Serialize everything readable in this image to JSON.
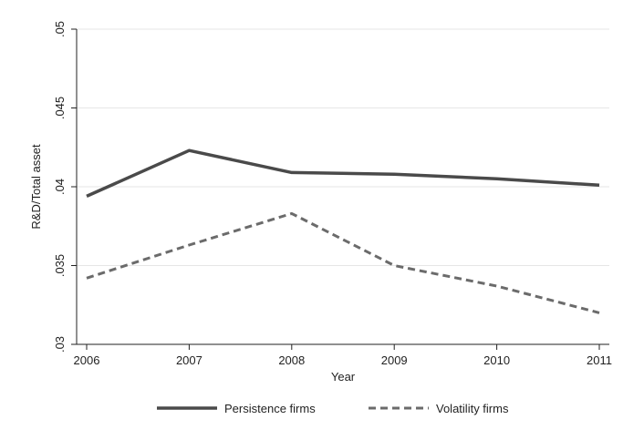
{
  "chart_data": {
    "type": "line",
    "title": "",
    "xlabel": "Year",
    "ylabel": "R&D/Total asset",
    "x": [
      2006,
      2007,
      2008,
      2009,
      2010,
      2011
    ],
    "x_tick_labels": [
      "2006",
      "2007",
      "2008",
      "2009",
      "2010",
      "2011"
    ],
    "xlim": [
      2006,
      2011
    ],
    "ylim": [
      0.03,
      0.05
    ],
    "y_ticks": [
      0.03,
      0.035,
      0.04,
      0.045,
      0.05
    ],
    "y_tick_labels": [
      ".03",
      ".035",
      ".04",
      ".045",
      ".05"
    ],
    "grid": "horizontal",
    "legend_position": "bottom",
    "series": [
      {
        "name": "Persistence firms",
        "color": "#4a4a4a",
        "style": "solid",
        "values": [
          0.0394,
          0.0423,
          0.0409,
          0.0408,
          0.0405,
          0.0401
        ]
      },
      {
        "name": "Volatility firms",
        "color": "#6b6b6b",
        "style": "dashed",
        "values": [
          0.0342,
          0.0363,
          0.0383,
          0.035,
          0.0337,
          0.032
        ]
      }
    ]
  }
}
